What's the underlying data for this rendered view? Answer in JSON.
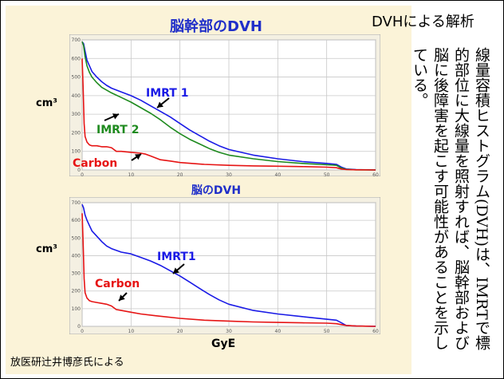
{
  "slide_title": "DVHによる解析",
  "vertical_text": "線量容積ヒストグラム(DVH)は、IMRTで標的部位に大線量を照射すれば、脳幹部および脳に後障害を起こす可能性があることを示している。",
  "footer": "放医研辻井博彦氏による",
  "chart_data": [
    {
      "type": "line",
      "title": "脳幹部のDVH",
      "ylabel": "cm³",
      "xlim": [
        0,
        60
      ],
      "ylim": [
        0,
        700
      ],
      "x_ticks": [
        0,
        10,
        20,
        30,
        40,
        50,
        60
      ],
      "y_ticks": [
        0,
        100,
        200,
        300,
        400,
        500,
        600,
        700
      ],
      "grid": true,
      "series": [
        {
          "name": "IMRT 1",
          "color": "#1a1ae6",
          "x": [
            0,
            0.3,
            0.6,
            1,
            1.5,
            2,
            3,
            4,
            5,
            6,
            8,
            10,
            12,
            14,
            16,
            18,
            20,
            22,
            24,
            26,
            28,
            30,
            35,
            40,
            45,
            50,
            52,
            53,
            54,
            56,
            60
          ],
          "y": [
            690,
            680,
            640,
            590,
            560,
            530,
            500,
            475,
            455,
            440,
            420,
            400,
            375,
            345,
            315,
            285,
            250,
            215,
            185,
            155,
            130,
            110,
            80,
            60,
            45,
            35,
            30,
            15,
            5,
            2,
            0
          ]
        },
        {
          "name": "IMRT 2",
          "color": "#1e8a1e",
          "x": [
            0,
            0.3,
            0.6,
            1,
            1.5,
            2,
            3,
            4,
            6,
            8,
            10,
            12,
            14,
            16,
            18,
            20,
            22,
            24,
            26,
            28,
            30,
            35,
            40,
            45,
            50,
            52,
            53,
            54,
            56,
            60
          ],
          "y": [
            690,
            670,
            610,
            560,
            525,
            500,
            470,
            445,
            415,
            390,
            365,
            335,
            305,
            270,
            230,
            195,
            165,
            140,
            115,
            95,
            80,
            60,
            45,
            35,
            28,
            25,
            10,
            3,
            1,
            0
          ]
        },
        {
          "name": "Carbon",
          "color": "#e61414",
          "x": [
            0,
            0.2,
            0.4,
            0.6,
            1,
            1.5,
            2,
            3,
            4,
            5,
            6,
            7,
            8,
            10,
            12,
            13,
            14,
            15,
            16,
            18,
            20,
            25,
            30,
            35,
            40,
            45,
            50,
            52,
            53,
            54,
            56,
            60
          ],
          "y": [
            600,
            450,
            250,
            180,
            150,
            135,
            130,
            130,
            125,
            125,
            120,
            100,
            100,
            95,
            90,
            85,
            75,
            65,
            55,
            48,
            40,
            30,
            25,
            22,
            20,
            18,
            15,
            12,
            5,
            2,
            1,
            0
          ]
        }
      ],
      "annotations": [
        "IMRT 1",
        "IMRT 2",
        "Carbon"
      ]
    },
    {
      "type": "line",
      "title": "脳のDVH",
      "ylabel": "cm³",
      "xlabel": "GyE",
      "xlim": [
        0,
        60
      ],
      "ylim": [
        0,
        700
      ],
      "x_ticks": [
        0,
        10,
        20,
        30,
        40,
        50,
        60
      ],
      "y_ticks": [
        0,
        100,
        200,
        300,
        400,
        500,
        600,
        700
      ],
      "grid": true,
      "series": [
        {
          "name": "IMRT1",
          "color": "#1a1ae6",
          "x": [
            0,
            0.3,
            0.6,
            1,
            1.5,
            2,
            3,
            4,
            5,
            6,
            8,
            10,
            12,
            14,
            16,
            18,
            20,
            22,
            24,
            26,
            28,
            30,
            35,
            40,
            45,
            50,
            52,
            53,
            54,
            56,
            60
          ],
          "y": [
            690,
            670,
            630,
            600,
            570,
            540,
            510,
            480,
            455,
            440,
            420,
            410,
            390,
            370,
            345,
            315,
            285,
            250,
            215,
            180,
            150,
            125,
            90,
            70,
            55,
            40,
            35,
            20,
            5,
            2,
            0
          ]
        },
        {
          "name": "Carbon",
          "color": "#e61414",
          "x": [
            0,
            0.2,
            0.4,
            0.6,
            1,
            1.5,
            2,
            3,
            4,
            5,
            6,
            7,
            8,
            10,
            12,
            15,
            20,
            25,
            30,
            35,
            40,
            45,
            50,
            52,
            53,
            54,
            56,
            60
          ],
          "y": [
            640,
            480,
            270,
            190,
            160,
            145,
            140,
            135,
            130,
            125,
            115,
            95,
            90,
            80,
            70,
            60,
            45,
            35,
            30,
            25,
            22,
            20,
            18,
            15,
            10,
            5,
            2,
            0
          ]
        }
      ],
      "annotations": [
        "IMRT1",
        "Carbon"
      ]
    }
  ]
}
